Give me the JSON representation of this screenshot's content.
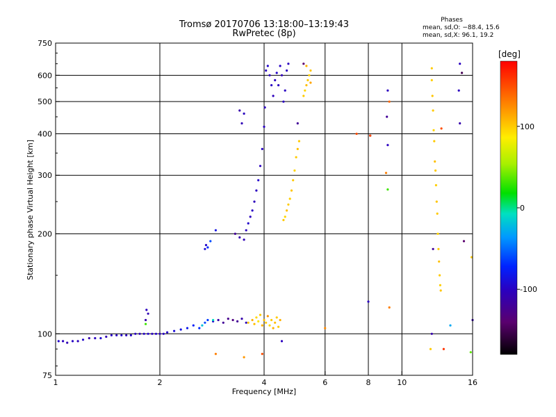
{
  "chart_data": {
    "type": "scatter",
    "title": "Tromsø 20170706 13:18:00–13:19:43",
    "subtitle": "RwPretec (8p)",
    "xlabel": "Frequency [MHz]",
    "ylabel": "Stationary phase Virtual Height [km]",
    "x_scale": "log",
    "y_scale": "log",
    "xlim": [
      1,
      16
    ],
    "ylim": [
      75,
      750
    ],
    "x_ticks": [
      1,
      2,
      4,
      6,
      8,
      10,
      16
    ],
    "y_ticks": [
      75,
      100,
      200,
      300,
      400,
      500,
      600,
      750
    ],
    "grid": true,
    "phases_box": {
      "title": "Phases",
      "line1": "mean, sd,O: −88.4, 15.6",
      "line2": "mean, sd,X:  96.1, 19.2"
    },
    "colorbar": {
      "label": "[deg]",
      "range": [
        -180,
        180
      ],
      "ticks": [
        -100,
        0,
        100
      ]
    },
    "series": [
      {
        "points": [
          [
            1.02,
            95,
            -95
          ],
          [
            1.05,
            95,
            -100
          ],
          [
            1.08,
            94,
            -105
          ],
          [
            1.12,
            95,
            -98
          ],
          [
            1.16,
            95,
            -102
          ],
          [
            1.2,
            96,
            -95
          ],
          [
            1.25,
            97,
            -110
          ],
          [
            1.3,
            97,
            -100
          ],
          [
            1.35,
            97,
            -92
          ],
          [
            1.4,
            98,
            -105
          ],
          [
            1.45,
            99,
            -98
          ],
          [
            1.5,
            99,
            -100
          ],
          [
            1.55,
            99,
            -95
          ],
          [
            1.6,
            99,
            -102
          ],
          [
            1.65,
            99,
            -96
          ],
          [
            1.7,
            100,
            -100
          ],
          [
            1.75,
            100,
            -104
          ],
          [
            1.8,
            100,
            -98
          ],
          [
            1.85,
            100,
            -95
          ],
          [
            1.9,
            100,
            -100
          ],
          [
            1.95,
            100,
            -97
          ],
          [
            2.0,
            100,
            -103
          ],
          [
            2.05,
            100,
            -99
          ],
          [
            2.1,
            101,
            -96
          ],
          [
            2.2,
            102,
            -90
          ],
          [
            2.3,
            103,
            -85
          ],
          [
            2.4,
            104,
            -80
          ],
          [
            2.5,
            106,
            -75
          ],
          [
            2.6,
            104,
            -70
          ],
          [
            2.7,
            108,
            -60
          ],
          [
            2.75,
            110,
            -65
          ],
          [
            2.85,
            109,
            -95
          ],
          [
            2.95,
            110,
            -110
          ],
          [
            3.05,
            108,
            -120
          ],
          [
            3.15,
            111,
            -125
          ],
          [
            3.25,
            110,
            -130
          ],
          [
            3.35,
            109,
            -120
          ],
          [
            3.45,
            111,
            -110
          ],
          [
            3.55,
            108,
            -100
          ],
          [
            1.82,
            110,
            -110
          ],
          [
            1.85,
            115,
            -105
          ],
          [
            1.83,
            118,
            -100
          ],
          [
            2.7,
            180,
            -90
          ],
          [
            2.72,
            185,
            -95
          ],
          [
            2.75,
            182,
            -70
          ],
          [
            2.8,
            190,
            -60
          ],
          [
            2.9,
            205,
            -85
          ],
          [
            3.3,
            200,
            -120
          ],
          [
            3.4,
            195,
            -110
          ],
          [
            3.5,
            192,
            -105
          ],
          [
            3.55,
            205,
            -100
          ],
          [
            3.6,
            215,
            -95
          ],
          [
            3.65,
            225,
            -100
          ],
          [
            3.7,
            235,
            -98
          ],
          [
            3.75,
            250,
            -102
          ],
          [
            3.8,
            270,
            -100
          ],
          [
            3.85,
            290,
            -95
          ],
          [
            3.9,
            320,
            -100
          ],
          [
            3.95,
            360,
            -98
          ],
          [
            4.0,
            420,
            -100
          ],
          [
            4.02,
            480,
            -102
          ],
          [
            3.45,
            430,
            -105
          ],
          [
            3.5,
            460,
            -100
          ],
          [
            3.4,
            470,
            -110
          ],
          [
            4.05,
            620,
            -100
          ],
          [
            4.1,
            640,
            -95
          ],
          [
            4.15,
            600,
            -100
          ],
          [
            4.2,
            560,
            -98
          ],
          [
            4.25,
            520,
            -102
          ],
          [
            4.3,
            580,
            -100
          ],
          [
            4.35,
            610,
            -96
          ],
          [
            4.4,
            560,
            -100
          ],
          [
            4.45,
            640,
            -98
          ],
          [
            4.5,
            600,
            -104
          ],
          [
            4.55,
            500,
            -100
          ],
          [
            4.6,
            540,
            -99
          ],
          [
            4.65,
            620,
            -101
          ],
          [
            4.7,
            650,
            -100
          ],
          [
            5.0,
            430,
            -120
          ],
          [
            5.2,
            650,
            -140
          ],
          [
            8.0,
            125,
            -100
          ],
          [
            8.1,
            395,
            -130
          ],
          [
            9.1,
            540,
            -100
          ],
          [
            9.05,
            450,
            -120
          ],
          [
            9.1,
            370,
            -100
          ],
          [
            12.2,
            100,
            -110
          ],
          [
            12.3,
            180,
            -120
          ],
          [
            14.7,
            650,
            -100
          ],
          [
            14.6,
            540,
            -100
          ],
          [
            14.7,
            430,
            -110
          ],
          [
            14.9,
            610,
            -150
          ],
          [
            15.1,
            190,
            -140
          ],
          [
            16.0,
            110,
            -110
          ],
          [
            4.5,
            95,
            -100
          ]
        ]
      },
      {
        "points": [
          [
            3.6,
            108,
            100
          ],
          [
            3.7,
            110,
            110
          ],
          [
            3.75,
            107,
            105
          ],
          [
            3.8,
            112,
            95
          ],
          [
            3.85,
            109,
            90
          ],
          [
            3.9,
            114,
            100
          ],
          [
            3.95,
            106,
            110
          ],
          [
            4.0,
            110,
            105
          ],
          [
            4.05,
            108,
            100
          ],
          [
            4.1,
            113,
            120
          ],
          [
            4.15,
            106,
            95
          ],
          [
            4.2,
            110,
            100
          ],
          [
            4.25,
            104,
            110
          ],
          [
            4.3,
            108,
            105
          ],
          [
            4.35,
            112,
            100
          ],
          [
            4.4,
            105,
            100
          ],
          [
            4.45,
            110,
            110
          ],
          [
            4.55,
            220,
            100
          ],
          [
            4.6,
            225,
            95
          ],
          [
            4.65,
            235,
            105
          ],
          [
            4.7,
            245,
            100
          ],
          [
            4.75,
            255,
            98
          ],
          [
            4.8,
            270,
            102
          ],
          [
            4.85,
            290,
            100
          ],
          [
            4.9,
            310,
            96
          ],
          [
            4.95,
            340,
            100
          ],
          [
            5.0,
            360,
            104
          ],
          [
            5.05,
            380,
            100
          ],
          [
            5.2,
            520,
            100
          ],
          [
            5.25,
            540,
            95
          ],
          [
            5.3,
            560,
            105
          ],
          [
            5.35,
            580,
            100
          ],
          [
            5.4,
            600,
            98
          ],
          [
            5.45,
            620,
            102
          ],
          [
            5.3,
            640,
            110
          ],
          [
            5.45,
            570,
            115
          ],
          [
            3.5,
            85,
            120
          ],
          [
            3.95,
            87,
            150
          ],
          [
            2.9,
            87,
            130
          ],
          [
            6.0,
            104,
            125
          ],
          [
            7.4,
            400,
            150
          ],
          [
            8.1,
            395,
            150
          ],
          [
            9.0,
            305,
            130
          ],
          [
            9.2,
            500,
            140
          ],
          [
            9.2,
            120,
            130
          ],
          [
            12.1,
            90,
            100
          ],
          [
            12.2,
            630,
            100
          ],
          [
            12.2,
            580,
            98
          ],
          [
            12.25,
            520,
            102
          ],
          [
            12.3,
            470,
            100
          ],
          [
            12.35,
            410,
            96
          ],
          [
            12.4,
            380,
            100
          ],
          [
            12.45,
            330,
            104
          ],
          [
            12.5,
            310,
            100
          ],
          [
            12.55,
            280,
            98
          ],
          [
            12.6,
            250,
            102
          ],
          [
            12.65,
            230,
            100
          ],
          [
            12.7,
            200,
            96
          ],
          [
            12.75,
            180,
            100
          ],
          [
            12.8,
            165,
            104
          ],
          [
            12.85,
            150,
            100
          ],
          [
            12.9,
            140,
            98
          ],
          [
            12.95,
            135,
            102
          ],
          [
            13.0,
            415,
            150
          ],
          [
            13.2,
            90,
            160
          ],
          [
            15.9,
            170,
            100
          ]
        ]
      },
      {
        "points": [
          [
            1.82,
            107,
            20
          ],
          [
            2.65,
            106,
            -20
          ],
          [
            9.1,
            272,
            20
          ],
          [
            15.8,
            88,
            30
          ],
          [
            13.8,
            106,
            -30
          ],
          [
            2.85,
            110,
            -10
          ]
        ]
      }
    ]
  }
}
